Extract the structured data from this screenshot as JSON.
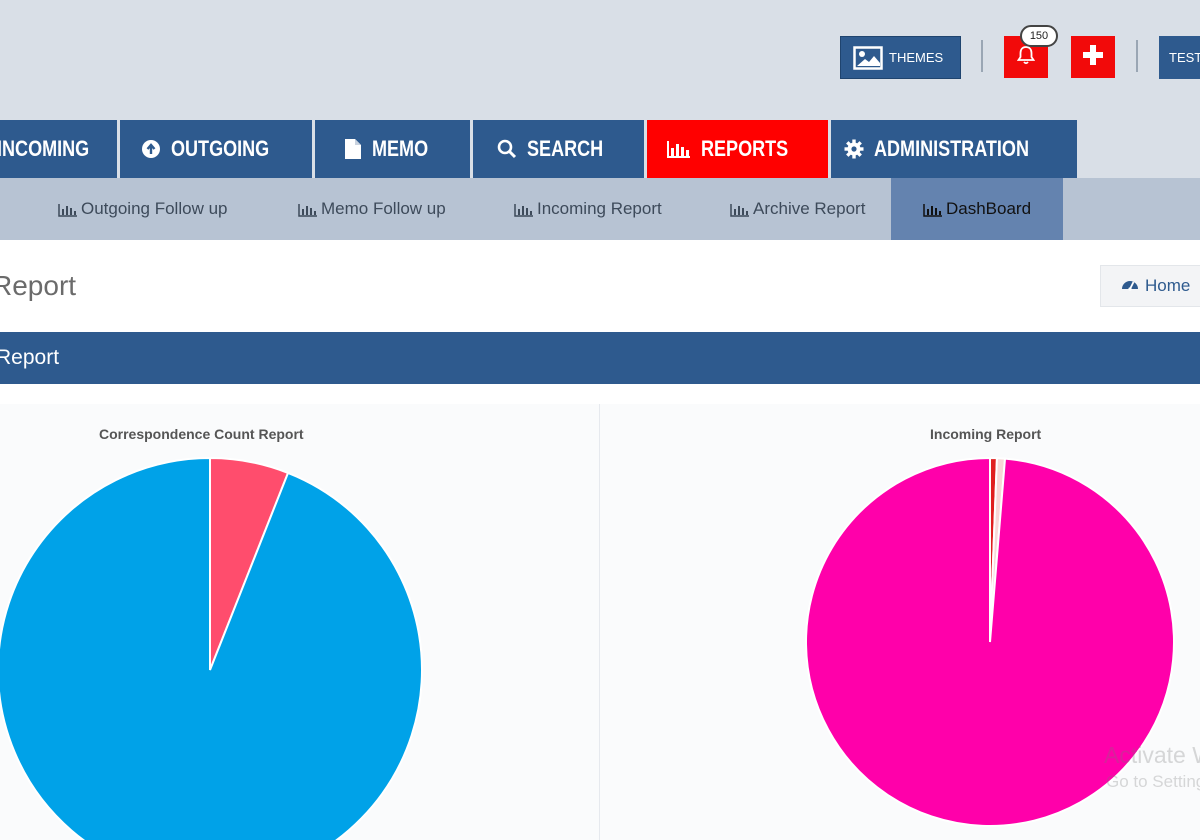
{
  "header": {
    "themes_label": "THEMES",
    "notification_count": "150",
    "user_label": "TEST"
  },
  "main_nav": [
    {
      "label": "INCOMING",
      "icon": "arrow-circle-down-icon",
      "active": false
    },
    {
      "label": "OUTGOING",
      "icon": "arrow-circle-up-icon",
      "active": false
    },
    {
      "label": "MEMO",
      "icon": "file-icon",
      "active": false
    },
    {
      "label": "SEARCH",
      "icon": "search-icon",
      "active": false
    },
    {
      "label": "REPORTS",
      "icon": "bar-chart-icon",
      "active": true
    },
    {
      "label": "ADMINISTRATION",
      "icon": "gear-icon",
      "active": false
    }
  ],
  "sub_nav": [
    {
      "label": "Outgoing Follow up",
      "active": false
    },
    {
      "label": "Memo Follow up",
      "active": false
    },
    {
      "label": "Incoming Report",
      "active": false
    },
    {
      "label": "Archive Report",
      "active": false
    },
    {
      "label": "DashBoard",
      "active": true
    }
  ],
  "page": {
    "title": "Report",
    "home_label": "Home",
    "panel_title": "Report"
  },
  "colors": {
    "nav_blue": "#2e5a8e",
    "active_red": "#ff0000",
    "subnav_bg": "#b7c3d3",
    "subnav_active": "#6483af"
  },
  "chart_data": [
    {
      "type": "pie",
      "title": "Correspondence Count Report",
      "slices": [
        {
          "value": 94,
          "color": "#00a2e8"
        },
        {
          "value": 6,
          "color": "#ff4d6d"
        }
      ]
    },
    {
      "type": "pie",
      "title": "Incoming Report",
      "slices": [
        {
          "value": 98.7,
          "color": "#ff00aa"
        },
        {
          "value": 0.6,
          "color": "#e02020"
        },
        {
          "value": 0.7,
          "color": "#f8d7d7"
        }
      ]
    }
  ],
  "watermark": {
    "line1": "Activate Windows",
    "line2": "Go to Settings to activate Windows."
  }
}
